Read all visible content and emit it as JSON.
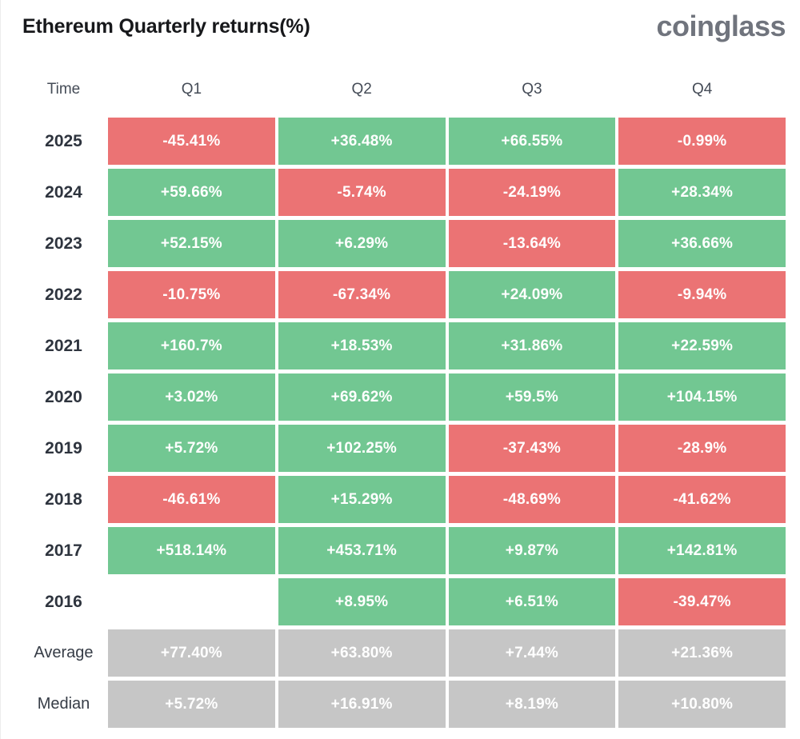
{
  "page": {
    "title": "Ethereum Quarterly returns(%)",
    "brand": "coinglass"
  },
  "colors": {
    "positive": "#72c792",
    "negative": "#eb7374",
    "summary": "#c6c6c6",
    "cell_text": "#ffffff"
  },
  "chart_data": {
    "type": "table",
    "title": "Ethereum Quarterly returns(%)",
    "columns": [
      "Time",
      "Q1",
      "Q2",
      "Q3",
      "Q4"
    ],
    "rows": [
      {
        "label": "2025",
        "type": "year",
        "values": [
          "-45.41%",
          "+36.48%",
          "+66.55%",
          "-0.99%"
        ]
      },
      {
        "label": "2024",
        "type": "year",
        "values": [
          "+59.66%",
          "-5.74%",
          "-24.19%",
          "+28.34%"
        ]
      },
      {
        "label": "2023",
        "type": "year",
        "values": [
          "+52.15%",
          "+6.29%",
          "-13.64%",
          "+36.66%"
        ]
      },
      {
        "label": "2022",
        "type": "year",
        "values": [
          "-10.75%",
          "-67.34%",
          "+24.09%",
          "-9.94%"
        ]
      },
      {
        "label": "2021",
        "type": "year",
        "values": [
          "+160.7%",
          "+18.53%",
          "+31.86%",
          "+22.59%"
        ]
      },
      {
        "label": "2020",
        "type": "year",
        "values": [
          "+3.02%",
          "+69.62%",
          "+59.5%",
          "+104.15%"
        ]
      },
      {
        "label": "2019",
        "type": "year",
        "values": [
          "+5.72%",
          "+102.25%",
          "-37.43%",
          "-28.9%"
        ]
      },
      {
        "label": "2018",
        "type": "year",
        "values": [
          "-46.61%",
          "+15.29%",
          "-48.69%",
          "-41.62%"
        ]
      },
      {
        "label": "2017",
        "type": "year",
        "values": [
          "+518.14%",
          "+453.71%",
          "+9.87%",
          "+142.81%"
        ]
      },
      {
        "label": "2016",
        "type": "year",
        "values": [
          "",
          "+8.95%",
          "+6.51%",
          "-39.47%"
        ]
      },
      {
        "label": "Average",
        "type": "summary",
        "values": [
          "+77.40%",
          "+63.80%",
          "+7.44%",
          "+21.36%"
        ]
      },
      {
        "label": "Median",
        "type": "summary",
        "values": [
          "+5.72%",
          "+16.91%",
          "+8.19%",
          "+10.80%"
        ]
      }
    ]
  }
}
